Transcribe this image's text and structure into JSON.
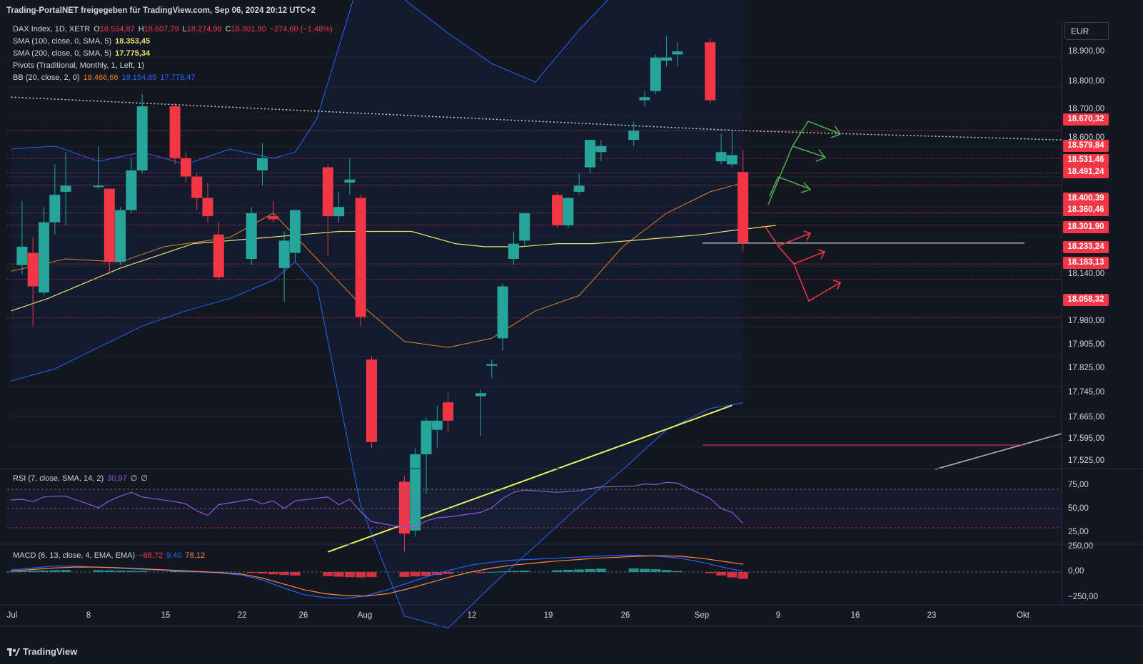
{
  "header": {
    "attribution": "Trading-PortalNET freigegeben für TradingView.com, Sep 06, 2024 20:12 UTC+2"
  },
  "legend": {
    "main": {
      "symbol": "DAX Index, 1D, XETR",
      "o_label": "O",
      "o": "18.534,87",
      "h_label": "H",
      "h": "18.607,79",
      "l_label": "L",
      "l": "18.274,98",
      "c_label": "C",
      "c": "18.301,90",
      "chg": "−274,60 (−1,48%)"
    },
    "sma100": {
      "label": "SMA (100, close, 0, SMA, 5)",
      "value": "18.353,45"
    },
    "sma200": {
      "label": "SMA (200, close, 0, SMA, 5)",
      "value": "17.775,34"
    },
    "pivots": {
      "label": "Pivots (Traditional, Monthly, 1, Left, 1)"
    },
    "bb": {
      "label": "BB (20, close, 2, 0)",
      "basis": "18.466,66",
      "upper": "19.154,85",
      "lower": "17.778,47"
    },
    "rsi": {
      "label": "RSI (7, close, SMA, 14, 2)",
      "value": "30,97",
      "extra1": "∅",
      "extra2": "∅"
    },
    "macd": {
      "label": "MACD (6, 13, close, 4, EMA, EMA)",
      "hist": "−68,72",
      "macd": "9,40",
      "signal": "78,12"
    }
  },
  "currency": "EUR",
  "brand": "TradingView",
  "colors": {
    "up": "#26a69a",
    "down": "#f23645",
    "sma100": "#e8e36a",
    "bb_basis": "#e0822c",
    "bb_band": "#2962ff",
    "rsi": "#8a5ad6",
    "macd": "#2962ff",
    "signal": "#ff8a3d",
    "green_arrow": "#4caf50",
    "red_arrow": "#f23645"
  },
  "price_axis": {
    "ticks": [
      "18.900,00",
      "18.800,00",
      "18.700,00",
      "18.600,00",
      "18.140,00",
      "17.980,00",
      "17.905,00",
      "17.825,00",
      "17.745,00",
      "17.665,00",
      "17.595,00",
      "17.525,00"
    ]
  },
  "price_labels": [
    "18.670,32",
    "18.579,84",
    "18.531,46",
    "18.491,24",
    "18.400,39",
    "18.360,46",
    "18.301,90",
    "18.233,24",
    "18.183,13",
    "18.058,32"
  ],
  "rsi_axis": {
    "ticks": [
      "75,00",
      "50,00",
      "25,00"
    ]
  },
  "macd_axis": {
    "ticks": [
      "250,00",
      "0,00",
      "−250,00"
    ]
  },
  "time_axis": {
    "labels": [
      "Jul",
      "8",
      "15",
      "22",
      "26",
      "Aug",
      "12",
      "19",
      "26",
      "Sep",
      "9",
      "16",
      "23",
      "Okt"
    ]
  },
  "chart_data": {
    "type": "candlestick",
    "symbol": "DAX Index",
    "interval": "1D",
    "currency": "EUR",
    "candles": [
      {
        "o": 18230,
        "h": 18440,
        "l": 18200,
        "c": 18290
      },
      {
        "o": 18270,
        "h": 18320,
        "l": 18030,
        "c": 18160
      },
      {
        "o": 18140,
        "h": 18420,
        "l": 18130,
        "c": 18370
      },
      {
        "o": 18370,
        "h": 18560,
        "l": 18330,
        "c": 18460
      },
      {
        "o": 18470,
        "h": 18600,
        "l": 18360,
        "c": 18490
      },
      {
        "o": 18490,
        "h": 18620,
        "l": 18480,
        "c": 18490
      },
      {
        "o": 18480,
        "h": 18480,
        "l": 18200,
        "c": 18240
      },
      {
        "o": 18240,
        "h": 18420,
        "l": 18230,
        "c": 18410
      },
      {
        "o": 18410,
        "h": 18580,
        "l": 18400,
        "c": 18540
      },
      {
        "o": 18540,
        "h": 18790,
        "l": 18530,
        "c": 18750
      },
      {
        "o": 18750,
        "h": 18760,
        "l": 18560,
        "c": 18580
      },
      {
        "o": 18580,
        "h": 18600,
        "l": 18500,
        "c": 18520
      },
      {
        "o": 18520,
        "h": 18530,
        "l": 18410,
        "c": 18450
      },
      {
        "o": 18450,
        "h": 18500,
        "l": 18370,
        "c": 18390
      },
      {
        "o": 18330,
        "h": 18370,
        "l": 18180,
        "c": 18190
      },
      {
        "o": 18250,
        "h": 18420,
        "l": 18230,
        "c": 18400
      },
      {
        "o": 18540,
        "h": 18630,
        "l": 18490,
        "c": 18580
      },
      {
        "o": 18390,
        "h": 18440,
        "l": 18370,
        "c": 18380
      },
      {
        "o": 18220,
        "h": 18340,
        "l": 18110,
        "c": 18310
      },
      {
        "o": 18270,
        "h": 18410,
        "l": 18240,
        "c": 18410
      },
      {
        "o": 18550,
        "h": 18560,
        "l": 18260,
        "c": 18390
      },
      {
        "o": 18390,
        "h": 18470,
        "l": 18370,
        "c": 18420
      },
      {
        "o": 18500,
        "h": 18580,
        "l": 18460,
        "c": 18510
      },
      {
        "o": 18450,
        "h": 18460,
        "l": 18030,
        "c": 18060
      },
      {
        "o": 17920,
        "h": 17930,
        "l": 17630,
        "c": 17650
      },
      {
        "o": 17520,
        "h": 17540,
        "l": 17290,
        "c": 17350
      },
      {
        "o": 17360,
        "h": 17630,
        "l": 17340,
        "c": 17610
      },
      {
        "o": 17610,
        "h": 17730,
        "l": 17480,
        "c": 17720
      },
      {
        "o": 17690,
        "h": 17770,
        "l": 17630,
        "c": 17720
      },
      {
        "o": 17780,
        "h": 17810,
        "l": 17680,
        "c": 17720
      },
      {
        "o": 17800,
        "h": 17820,
        "l": 17670,
        "c": 17810
      },
      {
        "o": 17900,
        "h": 17920,
        "l": 17860,
        "c": 17905
      },
      {
        "o": 17990,
        "h": 18170,
        "l": 17950,
        "c": 18160
      },
      {
        "o": 18250,
        "h": 18340,
        "l": 18230,
        "c": 18300
      },
      {
        "o": 18310,
        "h": 18400,
        "l": 18290,
        "c": 18400
      },
      {
        "o": 18460,
        "h": 18470,
        "l": 18350,
        "c": 18360
      },
      {
        "o": 18360,
        "h": 18450,
        "l": 18350,
        "c": 18450
      },
      {
        "o": 18470,
        "h": 18530,
        "l": 18460,
        "c": 18490
      },
      {
        "o": 18550,
        "h": 18640,
        "l": 18530,
        "c": 18640
      },
      {
        "o": 18600,
        "h": 18640,
        "l": 18570,
        "c": 18620
      },
      {
        "o": 18640,
        "h": 18700,
        "l": 18620,
        "c": 18670
      },
      {
        "o": 18770,
        "h": 18800,
        "l": 18750,
        "c": 18780
      },
      {
        "o": 18800,
        "h": 18920,
        "l": 18790,
        "c": 18910
      },
      {
        "o": 18900,
        "h": 18980,
        "l": 18880,
        "c": 18910
      },
      {
        "o": 18920,
        "h": 18960,
        "l": 18880,
        "c": 18930
      },
      {
        "o": 18960,
        "h": 18970,
        "l": 18760,
        "c": 18770
      },
      {
        "o": 18570,
        "h": 18660,
        "l": 18560,
        "c": 18600
      },
      {
        "o": 18560,
        "h": 18670,
        "l": 18550,
        "c": 18590
      },
      {
        "o": 18534.87,
        "h": 18607.79,
        "l": 18274.98,
        "c": 18301.9
      }
    ],
    "candle_days": [
      1,
      2,
      3,
      4,
      5,
      8,
      9,
      10,
      11,
      12,
      15,
      16,
      17,
      18,
      19,
      22,
      23,
      24,
      25,
      26,
      29,
      30,
      31,
      32,
      33,
      36,
      37,
      38,
      39,
      40,
      43,
      44,
      45,
      46,
      47,
      50,
      51,
      52,
      53,
      54,
      57,
      58,
      59,
      60,
      61,
      64,
      65,
      66,
      67
    ],
    "date_start": "2024-07-01",
    "sma100": {
      "days": [
        0,
        10,
        20,
        30,
        40,
        50,
        60,
        70,
        80,
        90,
        100,
        110,
        122,
        130,
        140,
        150,
        160,
        170,
        180,
        190,
        196,
        210
      ],
      "values": [
        18080,
        18120,
        18170,
        18220,
        18260,
        18300,
        18310,
        18320,
        18330,
        18340,
        18340,
        18340,
        18300,
        18290,
        18290,
        18300,
        18300,
        18310,
        18320,
        18330,
        18340,
        18360
      ]
    },
    "bb_basis": {
      "days": [
        0,
        5,
        10,
        14,
        20,
        24,
        28,
        32,
        36,
        40,
        44,
        48,
        52,
        56,
        60,
        64,
        67
      ],
      "values": [
        18210,
        18250,
        18240,
        18290,
        18320,
        18400,
        18250,
        18100,
        17980,
        17960,
        17990,
        18080,
        18130,
        18290,
        18400,
        18470,
        18500
      ]
    },
    "bb_upper": {
      "days": [
        0,
        4,
        8,
        12,
        16,
        20,
        24,
        26,
        28,
        32,
        36,
        40,
        44,
        48,
        52,
        56,
        60,
        64,
        67
      ],
      "values": [
        18610,
        18620,
        18570,
        18600,
        18560,
        18610,
        18580,
        18600,
        18710,
        19180,
        19100,
        18990,
        18890,
        18830,
        19000,
        19150,
        19280,
        19220,
        19155
      ]
    },
    "bb_lower": {
      "days": [
        0,
        4,
        8,
        12,
        16,
        20,
        24,
        26,
        28,
        32,
        36,
        40,
        44,
        48,
        52,
        56,
        60,
        64,
        67
      ],
      "values": [
        17850,
        17890,
        17960,
        18030,
        18080,
        18120,
        18180,
        18240,
        18160,
        17440,
        17080,
        17040,
        17180,
        17310,
        17440,
        17560,
        17690,
        17760,
        17778
      ]
    },
    "sma200_line": {
      "x_days": [
        29,
        66
      ],
      "values": [
        17290,
        17770
      ]
    },
    "resistance_dotted": {
      "x_days": [
        0,
        67,
        70
      ],
      "values": [
        18780,
        18670,
        18640
      ]
    },
    "support_white": {
      "x_days": [
        46,
        67
      ],
      "value": 18301.9
    },
    "support_red": {
      "x_days": [
        46,
        67
      ],
      "value": 17640
    },
    "rsi": {
      "days": [
        0,
        1,
        2,
        3,
        4,
        5,
        8,
        9,
        10,
        11,
        12,
        15,
        16,
        17,
        18,
        19,
        22,
        23,
        24,
        25,
        26,
        29,
        30,
        31,
        32,
        33,
        36,
        37,
        38,
        39,
        40,
        43,
        44,
        45,
        46,
        47,
        50,
        51,
        52,
        53,
        54,
        57,
        58,
        59,
        60,
        61,
        64,
        65,
        66,
        67
      ],
      "values": [
        61,
        62,
        59,
        65,
        66,
        66,
        51,
        60,
        66,
        71,
        65,
        59,
        56,
        47,
        41,
        55,
        62,
        56,
        60,
        50,
        60,
        65,
        55,
        62,
        46,
        33,
        25,
        26,
        34,
        38,
        39,
        45,
        51,
        63,
        71,
        74,
        71,
        72,
        73,
        76,
        78,
        79,
        82,
        81,
        84,
        83,
        63,
        50,
        45,
        31
      ],
      "levels": [
        75,
        50,
        25
      ]
    },
    "macd": {
      "hist": [
        5,
        10,
        14,
        16,
        18,
        20,
        18,
        16,
        14,
        12,
        10,
        8,
        6,
        4,
        0,
        -6,
        -10,
        -16,
        -24,
        -30,
        -36,
        -42,
        -48,
        -52,
        -55,
        -52,
        -50,
        -45,
        -40,
        -30,
        -20,
        -10,
        0,
        6,
        10,
        14,
        18,
        22,
        26,
        30,
        34,
        36,
        32,
        28,
        20,
        10,
        -12,
        -35,
        -55,
        -69
      ],
      "line": [
        20,
        40,
        60,
        60,
        50,
        40,
        30,
        20,
        10,
        0,
        -10,
        -30,
        -80,
        -160,
        -230,
        -260,
        -270,
        -240,
        -180,
        -110,
        -40,
        20,
        70,
        100,
        120,
        130,
        140,
        150,
        160,
        170,
        170,
        160,
        140,
        100,
        50,
        9
      ],
      "signal": [
        10,
        25,
        40,
        50,
        50,
        45,
        35,
        25,
        15,
        5,
        -5,
        -20,
        -60,
        -120,
        -180,
        -220,
        -240,
        -245,
        -220,
        -170,
        -110,
        -50,
        0,
        40,
        70,
        90,
        110,
        125,
        140,
        150,
        160,
        165,
        160,
        140,
        110,
        78
      ]
    },
    "annotations": {
      "green_arrows": 3,
      "red_arrows": 3
    }
  }
}
